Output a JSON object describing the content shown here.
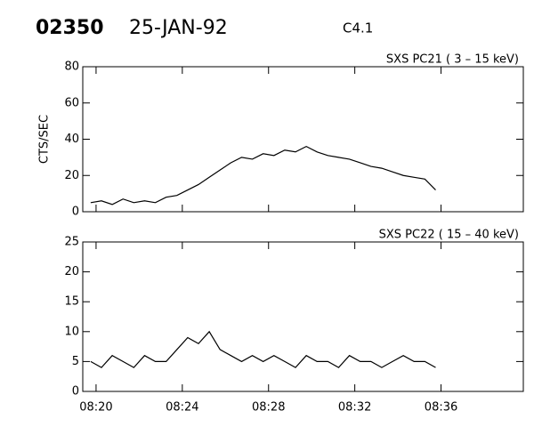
{
  "header": {
    "id": "02350",
    "date": "25-JAN-92",
    "class": "C4.1"
  },
  "chart_data": [
    {
      "type": "line",
      "title": "SXS PC21  (  3 – 15 keV)",
      "y_label": "CTS/SEC",
      "color": "#000000",
      "x": [
        "08:19:45",
        "08:20:15",
        "08:20:45",
        "08:21:15",
        "08:21:45",
        "08:22:15",
        "08:22:45",
        "08:23:15",
        "08:23:45",
        "08:24:15",
        "08:24:45",
        "08:25:15",
        "08:25:45",
        "08:26:15",
        "08:26:45",
        "08:27:15",
        "08:27:45",
        "08:28:15",
        "08:28:45",
        "08:29:15",
        "08:29:45",
        "08:30:15",
        "08:30:45",
        "08:31:15",
        "08:31:45",
        "08:32:15",
        "08:32:45",
        "08:33:15",
        "08:33:45",
        "08:34:15",
        "08:34:45",
        "08:35:15",
        "08:35:45"
      ],
      "series": [
        {
          "name": "PC21",
          "color": "#000000",
          "values": [
            5,
            6,
            4,
            7,
            5,
            6,
            5,
            8,
            9,
            12,
            15,
            19,
            23,
            27,
            30,
            29,
            32,
            31,
            34,
            33,
            36,
            33,
            31,
            30,
            29,
            27,
            25,
            24,
            22,
            20,
            19,
            18,
            12
          ]
        }
      ],
      "xlim": [
        "08:19:23",
        "08:39:49"
      ],
      "ylim": [
        0,
        80
      ],
      "yticks": [
        0,
        20,
        40,
        60,
        80
      ]
    },
    {
      "type": "line",
      "title": "SXS PC22  ( 15 – 40 keV)",
      "color": "#000000",
      "x": [
        "08:19:45",
        "08:20:15",
        "08:20:45",
        "08:21:15",
        "08:21:45",
        "08:22:15",
        "08:22:45",
        "08:23:15",
        "08:23:45",
        "08:24:15",
        "08:24:45",
        "08:25:15",
        "08:25:45",
        "08:26:15",
        "08:26:45",
        "08:27:15",
        "08:27:45",
        "08:28:15",
        "08:28:45",
        "08:29:15",
        "08:29:45",
        "08:30:15",
        "08:30:45",
        "08:31:15",
        "08:31:45",
        "08:32:15",
        "08:32:45",
        "08:33:15",
        "08:33:45",
        "08:34:15",
        "08:34:45",
        "08:35:15",
        "08:35:45"
      ],
      "series": [
        {
          "name": "PC22",
          "color": "#000000",
          "values": [
            5,
            4,
            6,
            5,
            4,
            6,
            5,
            5,
            7,
            9,
            8,
            10,
            7,
            6,
            5,
            6,
            5,
            6,
            5,
            4,
            6,
            5,
            5,
            4,
            6,
            5,
            5,
            4,
            5,
            6,
            5,
            5,
            4
          ]
        }
      ],
      "xlim": [
        "08:19:23",
        "08:39:49"
      ],
      "ylim": [
        0,
        25
      ],
      "yticks": [
        0,
        5,
        10,
        15,
        20,
        25
      ],
      "xticks": [
        "08:20",
        "08:24",
        "08:28",
        "08:32",
        "08:36"
      ]
    }
  ]
}
